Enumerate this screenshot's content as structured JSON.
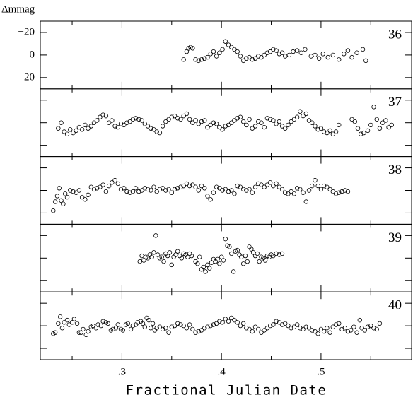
{
  "chart_data": [
    {
      "type": "scatter",
      "label": "36",
      "ylabel": "Δmmag",
      "y_inverted": true,
      "xlim": [
        0.218,
        0.591
      ],
      "ylim": [
        -30,
        30
      ],
      "yticks": [
        {
          "value": -20,
          "label": "−20"
        },
        0,
        20
      ],
      "xticks": [
        0.25,
        0.3,
        0.35,
        0.4,
        0.45,
        0.5,
        0.55
      ],
      "x": [
        0.362,
        0.365,
        0.367,
        0.369,
        0.371,
        0.374,
        0.377,
        0.38,
        0.383,
        0.386,
        0.389,
        0.392,
        0.395,
        0.398,
        0.401,
        0.404,
        0.407,
        0.41,
        0.413,
        0.416,
        0.419,
        0.422,
        0.425,
        0.428,
        0.431,
        0.434,
        0.437,
        0.44,
        0.443,
        0.446,
        0.449,
        0.452,
        0.455,
        0.458,
        0.461,
        0.464,
        0.468,
        0.472,
        0.476,
        0.48,
        0.484,
        0.49,
        0.494,
        0.498,
        0.502,
        0.507,
        0.512,
        0.518,
        0.523,
        0.527,
        0.531,
        0.536,
        0.542,
        0.545
      ],
      "values": [
        4,
        -3,
        -6,
        -7,
        -6,
        4,
        5,
        4,
        3,
        2,
        -1,
        -3,
        1,
        -2,
        -5,
        -12,
        -9,
        -7,
        -5,
        -3,
        1,
        5,
        3,
        2,
        4,
        3,
        1,
        2,
        0,
        -2,
        -3,
        -5,
        -4,
        -1,
        -2,
        1,
        0,
        -3,
        -4,
        -2,
        -5,
        1,
        0,
        3,
        -1,
        2,
        0,
        4,
        -1,
        -4,
        2,
        -2,
        -5,
        5
      ]
    },
    {
      "type": "scatter",
      "label": "37",
      "y_inverted": true,
      "xlim": [
        0.218,
        0.591
      ],
      "ylim": [
        -30,
        30
      ],
      "yticks": [
        -20,
        0,
        20
      ],
      "xticks": [
        0.25,
        0.3,
        0.35,
        0.4,
        0.45,
        0.5,
        0.55
      ],
      "x": [
        0.236,
        0.239,
        0.242,
        0.245,
        0.248,
        0.251,
        0.254,
        0.257,
        0.26,
        0.263,
        0.266,
        0.269,
        0.272,
        0.275,
        0.278,
        0.281,
        0.284,
        0.287,
        0.29,
        0.293,
        0.296,
        0.299,
        0.302,
        0.305,
        0.308,
        0.311,
        0.314,
        0.317,
        0.32,
        0.323,
        0.326,
        0.329,
        0.332,
        0.335,
        0.338,
        0.341,
        0.344,
        0.347,
        0.35,
        0.353,
        0.356,
        0.359,
        0.362,
        0.365,
        0.368,
        0.371,
        0.374,
        0.377,
        0.38,
        0.383,
        0.386,
        0.389,
        0.392,
        0.395,
        0.398,
        0.401,
        0.404,
        0.407,
        0.41,
        0.413,
        0.416,
        0.419,
        0.422,
        0.425,
        0.428,
        0.431,
        0.434,
        0.437,
        0.44,
        0.443,
        0.446,
        0.449,
        0.452,
        0.455,
        0.458,
        0.461,
        0.464,
        0.467,
        0.47,
        0.473,
        0.476,
        0.479,
        0.482,
        0.485,
        0.488,
        0.491,
        0.494,
        0.497,
        0.5,
        0.503,
        0.506,
        0.509,
        0.512,
        0.515,
        0.518,
        0.531,
        0.534,
        0.537,
        0.54,
        0.543,
        0.547,
        0.55,
        0.553,
        0.556,
        0.559,
        0.562,
        0.565,
        0.568,
        0.571
      ],
      "values": [
        5,
        0,
        8,
        10,
        6,
        9,
        7,
        4,
        6,
        2,
        5,
        3,
        0,
        -2,
        -5,
        -7,
        -6,
        0,
        -2,
        3,
        4,
        1,
        2,
        0,
        -1,
        -3,
        -4,
        -3,
        -2,
        1,
        3,
        5,
        6,
        8,
        9,
        3,
        -1,
        -3,
        -5,
        -6,
        -4,
        -3,
        -6,
        -8,
        -3,
        0,
        -2,
        1,
        -1,
        -2,
        4,
        2,
        0,
        1,
        4,
        6,
        3,
        2,
        0,
        -2,
        -4,
        -5,
        -1,
        2,
        -3,
        5,
        3,
        -1,
        0,
        4,
        -4,
        -3,
        -2,
        1,
        -1,
        3,
        5,
        2,
        -1,
        -3,
        -5,
        -10,
        -6,
        -8,
        -2,
        0,
        3,
        6,
        5,
        8,
        9,
        7,
        10,
        8,
        2,
        -3,
        -1,
        5,
        10,
        9,
        7,
        2,
        -14,
        -3,
        5,
        0,
        -2,
        4,
        2
      ]
    },
    {
      "type": "scatter",
      "label": "38",
      "y_inverted": true,
      "xlim": [
        0.218,
        0.591
      ],
      "ylim": [
        -30,
        30
      ],
      "yticks": [
        -20,
        0,
        20
      ],
      "xticks": [
        0.25,
        0.3,
        0.35,
        0.4,
        0.45,
        0.5,
        0.55
      ],
      "x": [
        0.231,
        0.233,
        0.235,
        0.237,
        0.239,
        0.241,
        0.243,
        0.245,
        0.248,
        0.251,
        0.254,
        0.257,
        0.26,
        0.263,
        0.266,
        0.269,
        0.272,
        0.275,
        0.278,
        0.281,
        0.284,
        0.287,
        0.29,
        0.293,
        0.296,
        0.299,
        0.302,
        0.305,
        0.308,
        0.311,
        0.314,
        0.317,
        0.32,
        0.323,
        0.326,
        0.329,
        0.332,
        0.335,
        0.338,
        0.341,
        0.344,
        0.347,
        0.35,
        0.353,
        0.356,
        0.359,
        0.362,
        0.365,
        0.368,
        0.371,
        0.374,
        0.377,
        0.38,
        0.383,
        0.386,
        0.389,
        0.392,
        0.395,
        0.398,
        0.401,
        0.404,
        0.407,
        0.41,
        0.413,
        0.416,
        0.419,
        0.422,
        0.425,
        0.428,
        0.431,
        0.434,
        0.437,
        0.44,
        0.443,
        0.446,
        0.449,
        0.452,
        0.455,
        0.458,
        0.461,
        0.464,
        0.467,
        0.47,
        0.473,
        0.476,
        0.479,
        0.482,
        0.485,
        0.488,
        0.491,
        0.494,
        0.497,
        0.5,
        0.503,
        0.506,
        0.509,
        0.512,
        0.515,
        0.518,
        0.521,
        0.524,
        0.527
      ],
      "values": [
        18,
        10,
        5,
        -2,
        9,
        12,
        3,
        6,
        0,
        1,
        2,
        0,
        6,
        8,
        4,
        -3,
        -1,
        -2,
        -3,
        -5,
        1,
        -4,
        -7,
        -9,
        -6,
        -1,
        -2,
        1,
        2,
        1,
        -2,
        1,
        0,
        -2,
        -1,
        0,
        -3,
        1,
        -1,
        -2,
        0,
        -1,
        2,
        -1,
        -2,
        -3,
        -4,
        -6,
        -4,
        -5,
        -3,
        0,
        -4,
        -2,
        5,
        8,
        2,
        -3,
        -2,
        0,
        -1,
        1,
        0,
        3,
        -4,
        -3,
        -1,
        0,
        -1,
        2,
        -3,
        -6,
        -5,
        -3,
        -5,
        -7,
        -4,
        -6,
        -3,
        -1,
        2,
        3,
        1,
        3,
        -2,
        -1,
        2,
        10,
        0,
        -4,
        -9,
        -4,
        -1,
        -4,
        -3,
        -1,
        1,
        3,
        2,
        1,
        0,
        1
      ]
    },
    {
      "type": "scatter",
      "label": "39",
      "y_inverted": true,
      "xlim": [
        0.218,
        0.591
      ],
      "ylim": [
        -30,
        30
      ],
      "yticks": [
        -20,
        0,
        20
      ],
      "xticks": [
        0.25,
        0.3,
        0.35,
        0.4,
        0.45,
        0.5,
        0.55
      ],
      "x": [
        0.318,
        0.32,
        0.322,
        0.324,
        0.326,
        0.328,
        0.33,
        0.332,
        0.334,
        0.336,
        0.338,
        0.34,
        0.342,
        0.344,
        0.346,
        0.348,
        0.35,
        0.352,
        0.354,
        0.356,
        0.358,
        0.36,
        0.362,
        0.364,
        0.366,
        0.368,
        0.37,
        0.374,
        0.376,
        0.378,
        0.38,
        0.382,
        0.384,
        0.386,
        0.388,
        0.39,
        0.392,
        0.394,
        0.396,
        0.398,
        0.4,
        0.402,
        0.404,
        0.406,
        0.408,
        0.41,
        0.412,
        0.414,
        0.416,
        0.418,
        0.42,
        0.422,
        0.424,
        0.426,
        0.428,
        0.43,
        0.432,
        0.434,
        0.436,
        0.438,
        0.44,
        0.442,
        0.444,
        0.446,
        0.448,
        0.45,
        0.452,
        0.455,
        0.458,
        0.461
      ],
      "values": [
        3,
        -2,
        2,
        -1,
        0,
        -3,
        -1,
        -5,
        -20,
        -3,
        0,
        -1,
        3,
        -4,
        -2,
        -5,
        6,
        -1,
        -3,
        -6,
        -2,
        0,
        -4,
        -3,
        -1,
        -4,
        -2,
        3,
        5,
        -1,
        10,
        8,
        12,
        6,
        9,
        4,
        1,
        3,
        1,
        5,
        -1,
        2,
        -17,
        -11,
        -10,
        -4,
        12,
        -6,
        -7,
        -3,
        -1,
        5,
        -2,
        3,
        -10,
        -8,
        -5,
        -2,
        -4,
        3,
        -1,
        0,
        2,
        -2,
        -1,
        -3,
        -2,
        -4,
        -3,
        -4
      ]
    },
    {
      "type": "scatter",
      "label": "40",
      "xlabel": "Fractional Julian Date",
      "y_inverted": true,
      "xlim": [
        0.218,
        0.591
      ],
      "ylim": [
        -30,
        30
      ],
      "yticks": [
        -20,
        0,
        20
      ],
      "xticks": [
        0.25,
        {
          "value": 0.3,
          "label": ".3"
        },
        0.35,
        {
          "value": 0.4,
          "label": ".4"
        },
        0.45,
        {
          "value": 0.5,
          "label": ".5"
        },
        0.55
      ],
      "x": [
        0.231,
        0.233,
        0.236,
        0.238,
        0.24,
        0.242,
        0.245,
        0.247,
        0.25,
        0.252,
        0.255,
        0.257,
        0.259,
        0.261,
        0.264,
        0.266,
        0.269,
        0.271,
        0.274,
        0.276,
        0.279,
        0.281,
        0.284,
        0.286,
        0.289,
        0.291,
        0.294,
        0.296,
        0.299,
        0.301,
        0.304,
        0.306,
        0.309,
        0.311,
        0.314,
        0.316,
        0.319,
        0.321,
        0.323,
        0.325,
        0.327,
        0.329,
        0.331,
        0.333,
        0.335,
        0.338,
        0.341,
        0.344,
        0.347,
        0.35,
        0.353,
        0.356,
        0.359,
        0.362,
        0.365,
        0.368,
        0.371,
        0.374,
        0.377,
        0.38,
        0.383,
        0.386,
        0.389,
        0.392,
        0.395,
        0.398,
        0.401,
        0.404,
        0.407,
        0.41,
        0.413,
        0.416,
        0.419,
        0.422,
        0.425,
        0.428,
        0.431,
        0.434,
        0.437,
        0.44,
        0.443,
        0.446,
        0.449,
        0.452,
        0.455,
        0.458,
        0.461,
        0.464,
        0.467,
        0.47,
        0.473,
        0.476,
        0.479,
        0.482,
        0.485,
        0.488,
        0.491,
        0.494,
        0.497,
        0.5,
        0.503,
        0.506,
        0.509,
        0.512,
        0.515,
        0.518,
        0.521,
        0.524,
        0.527,
        0.53,
        0.533,
        0.536,
        0.539,
        0.541,
        0.544,
        0.547,
        0.55,
        0.553,
        0.556,
        0.559
      ],
      "values": [
        7,
        6,
        -2,
        -8,
        2,
        -3,
        -5,
        -1,
        -3,
        -6,
        -2,
        6,
        6,
        3,
        8,
        5,
        1,
        0,
        2,
        -1,
        0,
        -4,
        -3,
        -2,
        4,
        3,
        2,
        -1,
        3,
        4,
        -1,
        -2,
        3,
        0,
        -1,
        -3,
        -4,
        -2,
        1,
        -7,
        -5,
        2,
        -2,
        4,
        2,
        1,
        3,
        2,
        6,
        1,
        0,
        -2,
        -1,
        0,
        2,
        -1,
        3,
        6,
        5,
        4,
        2,
        1,
        0,
        -1,
        -2,
        -4,
        -3,
        -6,
        -4,
        -7,
        -5,
        -3,
        0,
        -2,
        2,
        3,
        5,
        1,
        3,
        6,
        4,
        2,
        0,
        -1,
        -4,
        -3,
        -1,
        -2,
        0,
        2,
        1,
        -1,
        2,
        3,
        1,
        2,
        4,
        5,
        7,
        3,
        5,
        2,
        6,
        1,
        -1,
        -2,
        3,
        2,
        5,
        4,
        1,
        6,
        -5,
        2,
        4,
        1,
        0,
        2,
        3,
        -2
      ]
    }
  ]
}
